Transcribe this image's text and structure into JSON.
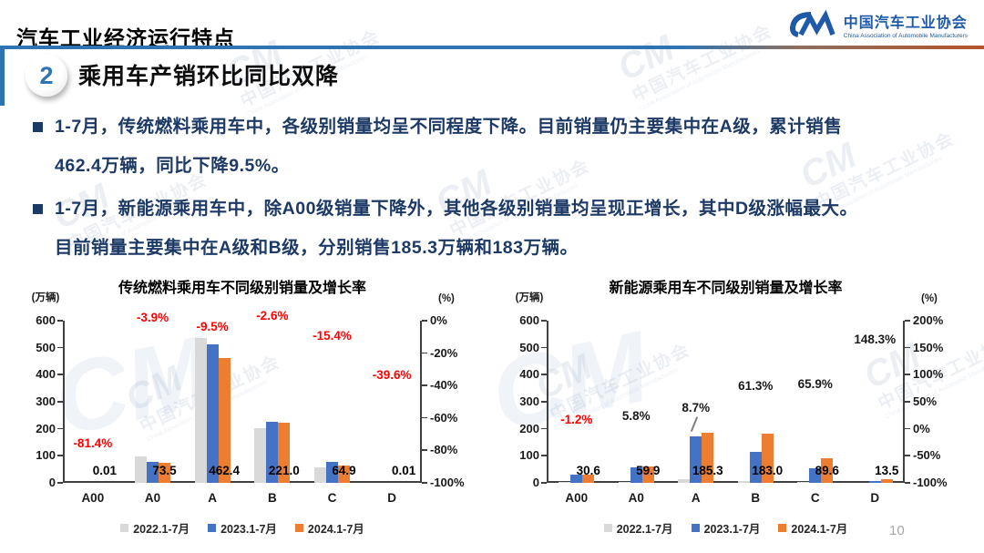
{
  "page": {
    "title": "汽车工业经济运行特点",
    "page_number": "10",
    "watermark_mark": "CM",
    "watermark_cn": "中国汽车工业协会",
    "watermark_en": "China Association of Automobile Manufacturers"
  },
  "logo": {
    "org_cn": "中国汽车工业协会",
    "org_en": "China Association of Automobile Manufacturers"
  },
  "section": {
    "number": "2",
    "heading": "乘用车产销环比同比双降"
  },
  "bullets": [
    {
      "lines": [
        "1-7月，传统燃料乘用车中，各级别销量均呈不同程度下降。目前销量仍主要集中在A级，累计销售",
        "462.4万辆，同比下降9.5%。"
      ]
    },
    {
      "lines": [
        "1-7月，新能源乘用车中，除A00级销量下降外，其他各级别销量均呈现正增长，其中D级涨幅最大。",
        "目前销量主要集中在A级和B级，分别销售185.3万辆和183万辆。"
      ]
    }
  ],
  "colors": {
    "accent_blue": "#2e74b5",
    "navy_text": "#1d3a66",
    "bar_2022": "#d9d9d9",
    "bar_2023": "#4472c4",
    "bar_2024": "#ed7d31",
    "growth_negative_red": "#ff0000",
    "rule_end_orange": "#b5542a"
  },
  "chart_data": [
    {
      "type": "bar",
      "title": "传统燃料乘用车不同级别销量及增长率",
      "unit_left": "(万辆)",
      "unit_right": "(%)",
      "categories": [
        "A00",
        "A0",
        "A",
        "B",
        "C",
        "D"
      ],
      "series": [
        {
          "name": "2022.1-7月",
          "color": "#d9d9d9",
          "values": [
            1,
            98,
            537,
            202,
            56,
            0.3
          ]
        },
        {
          "name": "2023.1-7月",
          "color": "#4472c4",
          "values": [
            0.1,
            76.5,
            510.9,
            226.9,
            76.7,
            0.02
          ]
        },
        {
          "name": "2024.1-7月",
          "color": "#ed7d31",
          "values": [
            0.01,
            73.5,
            462.4,
            221.0,
            64.9,
            0.01
          ]
        }
      ],
      "value_labels": [
        "0.01",
        "73.5",
        "462.4",
        "221.0",
        "64.9",
        "0.01"
      ],
      "growth_labels": [
        {
          "text": "-81.4%",
          "value": -81.4,
          "color": "#ff0000"
        },
        {
          "text": "-3.9%",
          "value": -3.9,
          "color": "#ff0000"
        },
        {
          "text": "-9.5%",
          "value": -9.5,
          "color": "#ff0000"
        },
        {
          "text": "-2.6%",
          "value": -2.6,
          "color": "#ff0000"
        },
        {
          "text": "-15.4%",
          "value": -15.4,
          "color": "#ff0000"
        },
        {
          "text": "-39.6%",
          "value": -39.6,
          "color": "#ff0000"
        }
      ],
      "left_axis": {
        "min": 0,
        "max": 600,
        "step": 100
      },
      "right_axis": {
        "min": -100,
        "max": 0,
        "labels": [
          "0%",
          "-20%",
          "-40%",
          "-60%",
          "-80%",
          "-100%"
        ]
      },
      "legend_position": "bottom",
      "grid": false
    },
    {
      "type": "bar",
      "title": "新能源乘用车不同级别销量及增长率",
      "unit_left": "(万辆)",
      "unit_right": "(%)",
      "categories": [
        "A00",
        "A0",
        "A",
        "B",
        "C",
        "D"
      ],
      "series": [
        {
          "name": "2022.1-7月",
          "color": "#d9d9d9",
          "values": [
            4,
            4,
            15,
            8,
            3,
            0.3
          ]
        },
        {
          "name": "2023.1-7月",
          "color": "#4472c4",
          "values": [
            31,
            56.6,
            170.5,
            113.4,
            54,
            5.4
          ]
        },
        {
          "name": "2024.1-7月",
          "color": "#ed7d31",
          "values": [
            30.6,
            59.9,
            185.3,
            183.0,
            89.6,
            13.5
          ]
        }
      ],
      "value_labels": [
        "30.6",
        "59.9",
        "185.3",
        "183.0",
        "89.6",
        "13.5"
      ],
      "growth_labels": [
        {
          "text": "-1.2%",
          "value": -1.2,
          "color": "#ff0000"
        },
        {
          "text": "5.8%",
          "value": 5.8,
          "color": "#1a1a1a"
        },
        {
          "text": "8.7%",
          "value": 8.7,
          "color": "#1a1a1a",
          "dy": -8,
          "leader": true
        },
        {
          "text": "61.3%",
          "value": 61.3,
          "color": "#1a1a1a"
        },
        {
          "text": "65.9%",
          "value": 65.9,
          "color": "#1a1a1a"
        },
        {
          "text": "148.3%",
          "value": 148.3,
          "color": "#1a1a1a"
        }
      ],
      "left_axis": {
        "min": 0,
        "max": 600,
        "step": 100
      },
      "right_axis": {
        "min": -100,
        "max": 200,
        "labels": [
          "200%",
          "150%",
          "100%",
          "50%",
          "0%",
          "-50%",
          "-100%"
        ]
      },
      "legend_position": "bottom",
      "grid": false
    }
  ]
}
